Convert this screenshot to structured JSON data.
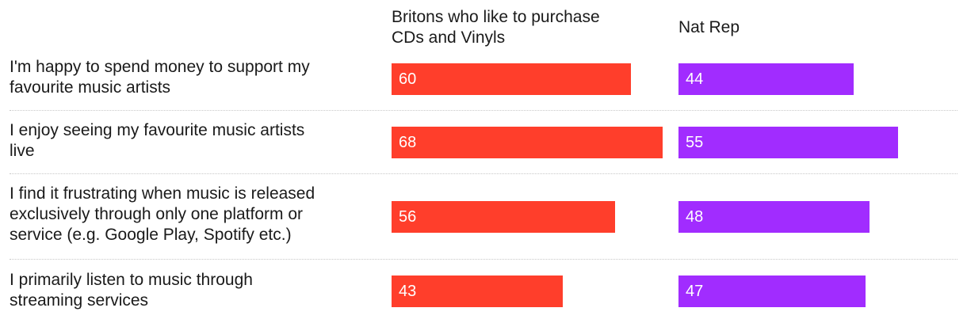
{
  "chart_data": {
    "type": "bar",
    "orientation": "horizontal",
    "categories": [
      "I'm happy to spend money to support my favourite music artists",
      "I enjoy seeing my favourite music artists live",
      "I find it frustrating when music is released exclusively through only one platform or service (e.g. Google Play, Spotify etc.)",
      "I primarily listen to music through streaming services"
    ],
    "category_lines": [
      [
        "I'm happy to spend money to support my",
        "favourite music artists"
      ],
      [
        "I enjoy seeing my favourite music artists",
        "live"
      ],
      [
        "I find it frustrating when music is released",
        "exclusively through only one platform or",
        "service (e.g. Google Play, Spotify etc.)"
      ],
      [
        "I primarily listen to music through",
        "streaming services"
      ]
    ],
    "series": [
      {
        "name": "Britons who like to purchase CDs and Vinyls",
        "name_lines": [
          "Britons who like to purchase",
          "CDs and Vinyls"
        ],
        "color": "#ff3e2b",
        "values": [
          60,
          68,
          56,
          43
        ]
      },
      {
        "name": "Nat Rep",
        "name_lines": [
          "Nat Rep"
        ],
        "color": "#a12cff",
        "values": [
          44,
          55,
          48,
          47
        ]
      }
    ],
    "xlim": [
      0,
      68
    ],
    "grid": false,
    "legend": "column headers above each bar group"
  }
}
